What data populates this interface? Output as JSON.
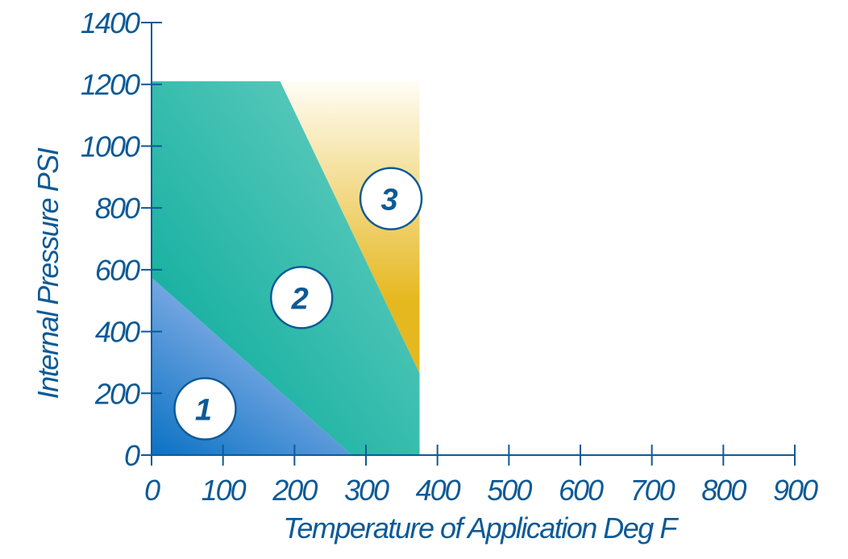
{
  "chart_data": {
    "type": "area",
    "xlabel": "Temperature of Application Deg F",
    "ylabel": "Internal Pressure PSI",
    "xlim": [
      0,
      900
    ],
    "ylim": [
      0,
      1400
    ],
    "x_ticks": [
      "0",
      "100",
      "200",
      "300",
      "400",
      "500",
      "600",
      "700",
      "800",
      "900"
    ],
    "y_ticks": [
      "0",
      "200",
      "400",
      "600",
      "800",
      "1000",
      "1200",
      "1400"
    ],
    "grid": false,
    "regions": [
      {
        "name": "1",
        "polygon": [
          [
            0,
            0
          ],
          [
            0,
            575
          ],
          [
            280,
            0
          ]
        ],
        "label_at": [
          75,
          150
        ],
        "colors": [
          "#0a72c4",
          "#8fb3e8"
        ]
      },
      {
        "name": "2",
        "polygon": [
          [
            0,
            575
          ],
          [
            0,
            1210
          ],
          [
            180,
            1210
          ],
          [
            375,
            265
          ],
          [
            375,
            0
          ],
          [
            280,
            0
          ]
        ],
        "label_at": [
          210,
          510
        ],
        "colors": [
          "#00a898",
          "#6fd1c4"
        ]
      },
      {
        "name": "3",
        "polygon": [
          [
            180,
            1210
          ],
          [
            375,
            1210
          ],
          [
            375,
            265
          ]
        ],
        "label_at": [
          335,
          830
        ],
        "colors": [
          "#e6b820",
          "#fffdf6"
        ]
      }
    ]
  }
}
